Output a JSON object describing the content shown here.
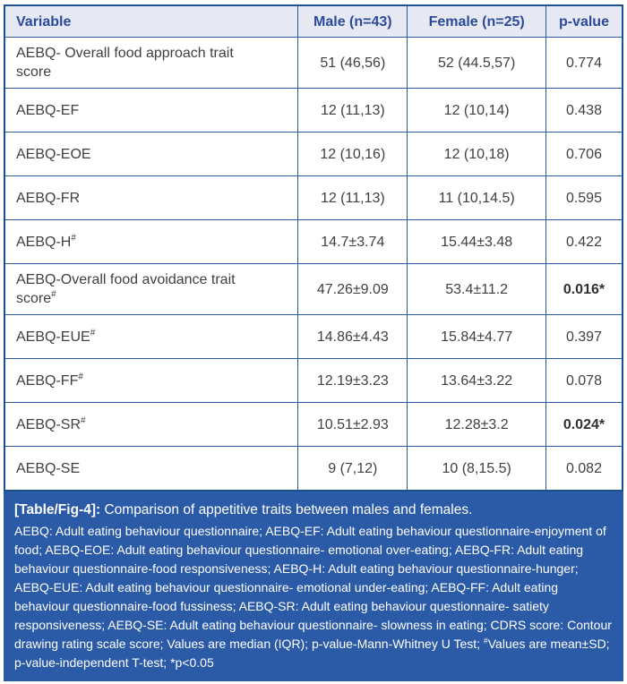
{
  "table": {
    "columns": [
      "Variable",
      "Male (n=43)",
      "Female (n=25)",
      "p-value"
    ],
    "rows": [
      {
        "variable": "AEBQ- Overall food approach trait score",
        "sup": "",
        "male": "51 (46,56)",
        "female": "52 (44.5,57)",
        "p": "0.774",
        "p_bold": false
      },
      {
        "variable": "AEBQ-EF",
        "sup": "",
        "male": "12 (11,13)",
        "female": "12 (10,14)",
        "p": "0.438",
        "p_bold": false
      },
      {
        "variable": "AEBQ-EOE",
        "sup": "",
        "male": "12 (10,16)",
        "female": "12 (10,18)",
        "p": "0.706",
        "p_bold": false
      },
      {
        "variable": "AEBQ-FR",
        "sup": "",
        "male": "12 (11,13)",
        "female": "11 (10,14.5)",
        "p": "0.595",
        "p_bold": false
      },
      {
        "variable": "AEBQ-H",
        "sup": "#",
        "male": "14.7±3.74",
        "female": "15.44±3.48",
        "p": "0.422",
        "p_bold": false
      },
      {
        "variable": "AEBQ-Overall food avoidance trait score",
        "sup": "#",
        "male": "47.26±9.09",
        "female": "53.4±11.2",
        "p": "0.016*",
        "p_bold": true
      },
      {
        "variable": "AEBQ-EUE",
        "sup": "#",
        "male": "14.86±4.43",
        "female": "15.84±4.77",
        "p": "0.397",
        "p_bold": false
      },
      {
        "variable": "AEBQ-FF",
        "sup": "#",
        "male": "12.19±3.23",
        "female": "13.64±3.22",
        "p": "0.078",
        "p_bold": false
      },
      {
        "variable": "AEBQ-SR",
        "sup": "#",
        "male": "10.51±2.93",
        "female": "12.28±3.2",
        "p": "0.024*",
        "p_bold": true
      },
      {
        "variable": "AEBQ-SE",
        "sup": "",
        "male": "9 (7,12)",
        "female": "10 (8,15.5)",
        "p": "0.082",
        "p_bold": false
      }
    ]
  },
  "caption": {
    "label": "[Table/Fig-4]:",
    "title": " Comparison of appetitive traits between males and females.",
    "footnote_part1": "AEBQ: Adult eating behaviour questionnaire; AEBQ-EF: Adult eating behaviour questionnaire-enjoyment of food; AEBQ-EOE: Adult eating behaviour questionnaire- emotional over-eating; AEBQ-FR: Adult eating behaviour questionnaire-food responsiveness; AEBQ-H: Adult eating behaviour questionnaire-hunger; AEBQ-EUE: Adult eating behaviour questionnaire- emotional under-eating; AEBQ-FF: Adult eating behaviour questionnaire-food fussiness; AEBQ-SR: Adult eating behaviour questionnaire- satiety responsiveness; AEBQ-SE: Adult eating behaviour questionnaire- slowness in eating; CDRS score: Contour drawing rating scale score; Values are median (IQR); p-value-Mann-Whitney U Test; ",
    "footnote_sup": "#",
    "footnote_part2": "Values are mean±SD; p-value-independent T-test; *p<0.05"
  },
  "colors": {
    "border_outer": "#1d4f93",
    "border_inner": "#2a5a9b",
    "header_bg": "#e6e9f2",
    "header_text": "#2b4a9c",
    "body_text": "#404040",
    "caption_bg": "#2b5aa7",
    "caption_text": "#ffffff"
  }
}
